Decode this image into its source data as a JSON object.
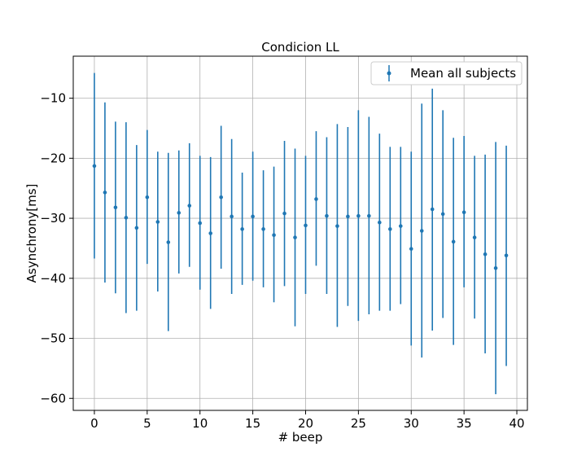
{
  "chart_data": {
    "type": "scatter",
    "title": "Condicion LL",
    "xlabel": "# beep",
    "ylabel": "Asynchrony[ms]",
    "xlim": [
      -2,
      41
    ],
    "ylim": [
      -62,
      -3
    ],
    "xticks": [
      0,
      5,
      10,
      15,
      20,
      25,
      30,
      35,
      40
    ],
    "yticks": [
      -60,
      -50,
      -40,
      -30,
      -20,
      -10
    ],
    "xtick_labels": [
      "0",
      "5",
      "10",
      "15",
      "20",
      "25",
      "30",
      "35",
      "40"
    ],
    "ytick_labels": [
      "−60",
      "−50",
      "−40",
      "−30",
      "−20",
      "−10"
    ],
    "grid": true,
    "legend_position": "top-right",
    "color": "#1f77b4",
    "series": [
      {
        "name": "Mean all subjects",
        "marker": "point-with-errorbar",
        "x": [
          0,
          1,
          2,
          3,
          4,
          5,
          6,
          7,
          8,
          9,
          10,
          11,
          12,
          13,
          14,
          15,
          16,
          17,
          18,
          19,
          20,
          21,
          22,
          23,
          24,
          25,
          26,
          27,
          28,
          29,
          30,
          31,
          32,
          33,
          34,
          35,
          36,
          37,
          38,
          39
        ],
        "y": [
          -21.3,
          -25.7,
          -28.2,
          -29.9,
          -31.6,
          -26.5,
          -30.6,
          -34.0,
          -29.1,
          -27.9,
          -30.8,
          -32.5,
          -26.5,
          -29.7,
          -31.8,
          -29.7,
          -31.8,
          -32.8,
          -29.2,
          -33.2,
          -31.2,
          -26.8,
          -29.6,
          -31.3,
          -29.7,
          -29.6,
          -29.6,
          -30.7,
          -31.8,
          -31.3,
          -35.1,
          -32.1,
          -28.5,
          -29.3,
          -33.9,
          -29.0,
          -33.2,
          -36.0,
          -38.3,
          -36.2
        ],
        "yerr_low": [
          -36.7,
          -40.7,
          -42.5,
          -45.8,
          -45.4,
          -37.6,
          -42.2,
          -48.8,
          -39.2,
          -38.1,
          -41.9,
          -45.1,
          -38.4,
          -42.6,
          -41.1,
          -40.4,
          -41.5,
          -44.0,
          -41.3,
          -48.0,
          -42.6,
          -37.9,
          -42.6,
          -48.1,
          -44.6,
          -47.1,
          -46.0,
          -45.4,
          -45.4,
          -44.3,
          -51.2,
          -53.2,
          -48.7,
          -46.6,
          -51.1,
          -41.5,
          -46.7,
          -52.5,
          -59.3,
          -54.6
        ],
        "yerr_high": [
          -5.8,
          -10.7,
          -13.9,
          -14.0,
          -17.8,
          -15.3,
          -18.9,
          -19.1,
          -18.7,
          -17.5,
          -19.6,
          -19.8,
          -14.6,
          -16.8,
          -22.4,
          -18.9,
          -22.0,
          -21.4,
          -17.1,
          -18.4,
          -19.6,
          -15.5,
          -16.5,
          -14.3,
          -14.8,
          -12.0,
          -13.1,
          -15.9,
          -18.1,
          -18.1,
          -18.9,
          -10.9,
          -8.4,
          -12.0,
          -16.6,
          -16.3,
          -19.6,
          -19.4,
          -17.3,
          -17.9
        ]
      }
    ]
  }
}
